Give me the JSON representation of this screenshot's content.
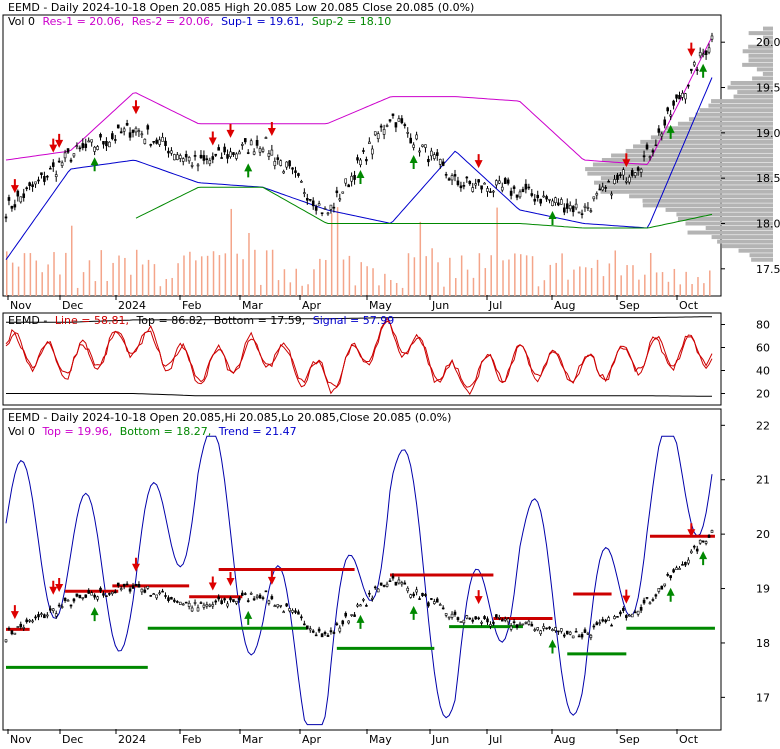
{
  "colors": {
    "resistance": "#cc00cc",
    "support": "#0000cc",
    "support2": "#008800",
    "volume": "#f4a58a",
    "profile": "#b4b4b4",
    "signal": "#cc0000",
    "line": "#cc0000",
    "band": "#000000",
    "trend": "#0000aa",
    "top_line": "#cc0000",
    "bottom_line": "#008800",
    "arrow_down": "#dd0000",
    "arrow_up": "#008800",
    "candle": "#000000"
  },
  "x_months": [
    "Nov",
    "Dec",
    "2024",
    "Feb",
    "Mar",
    "Apr",
    "May",
    "Jun",
    "Jul",
    "Aug",
    "Sep",
    "Oct"
  ],
  "panel1": {
    "header": {
      "title": "EEMD - Daily 2024-10-18 Open 20.085  High 20.085  Low 20.085  Close 20.085 (0.0%)",
      "vol": "Vol 0",
      "res1": "Res-1 = 20.06,",
      "res2": "Res-2 = 20.06,",
      "sup1": "Sup-1 = 19.61,",
      "sup2": "Sup-2 = 18.10"
    },
    "y_ticks": [
      "20.0",
      "19.5",
      "19.0",
      "18.5",
      "18.0",
      "17.5"
    ]
  },
  "panel2": {
    "header": {
      "ticker": "EEMD -",
      "line": "Line = 58.81,",
      "top": "Top = 86.82,",
      "bottom": "Bottom = 17.59,",
      "signal": "Signal = 57.99"
    },
    "y_ticks": [
      "80",
      "60",
      "40",
      "20"
    ]
  },
  "panel3": {
    "header": {
      "title": "EEMD - Daily 2024-10-18 Open 20.085,Hi 20.085,Lo 20.085,Close 20.085 (0.0%)",
      "vol": "Vol 0",
      "top": "Top = 19.96,",
      "bottom": "Bottom = 18.27,",
      "trend": "Trend = 21.47"
    },
    "y_ticks": [
      "22",
      "21",
      "20",
      "19",
      "18",
      "17"
    ]
  },
  "chart_data": [
    {
      "type": "line",
      "title": "EEMD - Daily 2024-10-18 Open 20.085  High 20.085  Low 20.085  Close 20.085 (0.0%)",
      "x": [
        "Nov",
        "Dec",
        "2024",
        "Feb",
        "Mar",
        "Apr",
        "May",
        "Jun",
        "Jul",
        "Aug",
        "Sep",
        "Oct"
      ],
      "ylim": [
        17.2,
        20.3
      ],
      "series": [
        {
          "name": "Close",
          "values": [
            18.15,
            18.75,
            19.05,
            18.65,
            18.9,
            18.1,
            19.2,
            18.45,
            18.35,
            18.15,
            18.75,
            20.05
          ]
        },
        {
          "name": "Res-1",
          "values": [
            18.7,
            18.8,
            19.45,
            19.1,
            19.1,
            19.1,
            19.4,
            19.4,
            19.35,
            18.7,
            18.65,
            20.06
          ]
        },
        {
          "name": "Sup-1",
          "values": [
            17.6,
            18.6,
            18.7,
            18.45,
            18.4,
            18.15,
            18.0,
            18.8,
            18.15,
            18.0,
            17.95,
            19.61
          ]
        },
        {
          "name": "Sup-2",
          "values": [
            null,
            null,
            18.05,
            18.4,
            18.4,
            18.0,
            18.0,
            18.0,
            18.0,
            17.95,
            17.95,
            18.1
          ]
        }
      ]
    },
    {
      "type": "line",
      "x": [
        "Nov",
        "Dec",
        "2024",
        "Feb",
        "Mar",
        "Apr",
        "May",
        "Jun",
        "Jul",
        "Aug",
        "Sep",
        "Oct"
      ],
      "ylim": [
        10,
        90
      ],
      "series": [
        {
          "name": "Line",
          "values": [
            62,
            45,
            70,
            40,
            60,
            30,
            75,
            30,
            50,
            40,
            55,
            58.81
          ]
        },
        {
          "name": "Signal",
          "values": [
            60,
            48,
            66,
            43,
            57,
            33,
            72,
            33,
            48,
            42,
            53,
            57.99
          ]
        },
        {
          "name": "Top",
          "values": [
            82,
            82,
            84,
            84,
            85,
            85,
            86,
            86,
            86,
            86,
            86,
            86.82
          ]
        },
        {
          "name": "Bottom",
          "values": [
            20,
            20,
            20,
            18,
            18,
            18,
            18,
            18,
            18,
            18,
            18,
            17.59
          ]
        }
      ]
    },
    {
      "type": "line",
      "title": "EEMD - Daily 2024-10-18 Open 20.085,Hi 20.085,Lo 20.085,Close 20.085 (0.0%)",
      "x": [
        "Nov",
        "Dec",
        "2024",
        "Feb",
        "Mar",
        "Apr",
        "May",
        "Jun",
        "Jul",
        "Aug",
        "Sep",
        "Oct"
      ],
      "ylim": [
        16.4,
        22.3
      ],
      "series": [
        {
          "name": "Close",
          "values": [
            18.2,
            18.75,
            19.05,
            18.65,
            18.9,
            18.1,
            19.2,
            18.45,
            18.35,
            18.15,
            18.75,
            20.05
          ]
        },
        {
          "name": "Trend",
          "values": [
            20.2,
            19.6,
            19.0,
            21.3,
            18.5,
            17.0,
            21.2,
            17.2,
            20.0,
            17.5,
            20.5,
            21.47
          ]
        }
      ]
    }
  ]
}
